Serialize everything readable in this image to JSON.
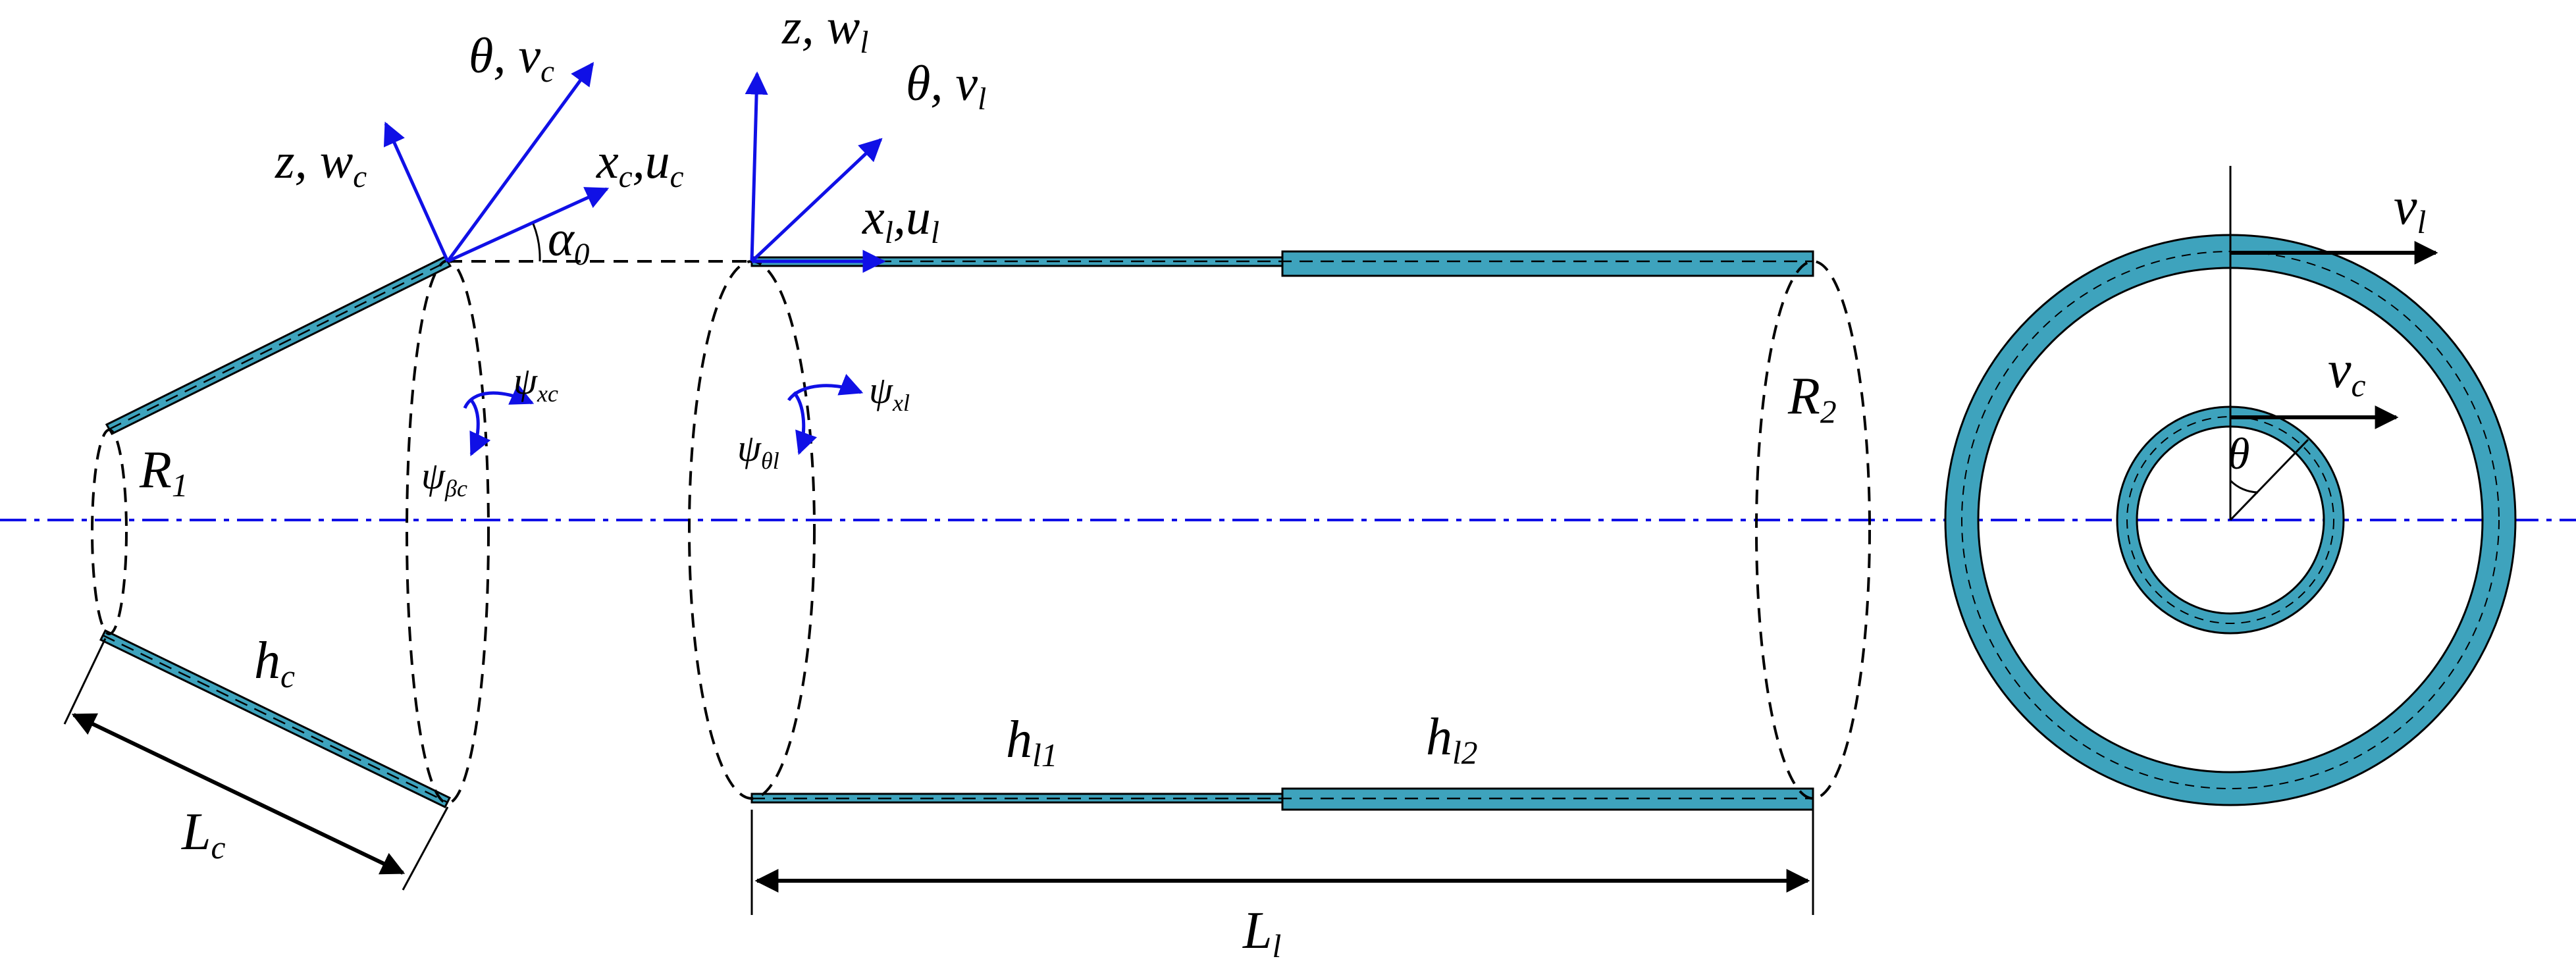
{
  "labels": {
    "cone_theta_v": "θ, v",
    "cone_theta_v_sub": "c",
    "cone_z_w": "z, w",
    "cone_z_w_sub": "c",
    "cone_x_u": "x",
    "cone_x_u_sub1": "c",
    "cone_x_u_mid": ",u",
    "cone_x_u_sub2": "c",
    "alpha": "α",
    "alpha_sub": "0",
    "psi_xc": "ψ",
    "psi_xc_sub": "xc",
    "psi_bc": "ψ",
    "psi_bc_sub": "βc",
    "R1": "R",
    "R1_sub": "1",
    "hc": "h",
    "hc_sub": "c",
    "Lc": "L",
    "Lc_sub": "c",
    "cyl_z_w": "z, w",
    "cyl_z_w_sub": "l",
    "cyl_theta_v": "θ, v",
    "cyl_theta_v_sub": "l",
    "cyl_x_u": "x",
    "cyl_x_u_sub1": "l",
    "cyl_x_u_mid": ",u",
    "cyl_x_u_sub2": "l",
    "psi_xl": "ψ",
    "psi_xl_sub": "xl",
    "psi_tl": "ψ",
    "psi_tl_sub": "θl",
    "R2": "R",
    "R2_sub": "2",
    "hl1": "h",
    "hl1_sub": "l1",
    "hl2": "h",
    "hl2_sub": "l2",
    "Ll": "L",
    "Ll_sub": "l",
    "vl": "v",
    "vl_sub": "l",
    "vc": "v",
    "vc_sub": "c",
    "theta": "θ"
  },
  "colors": {
    "shell_fill": "#3ea3bd",
    "axis_blue": "#1010e6",
    "line": "#000000"
  }
}
